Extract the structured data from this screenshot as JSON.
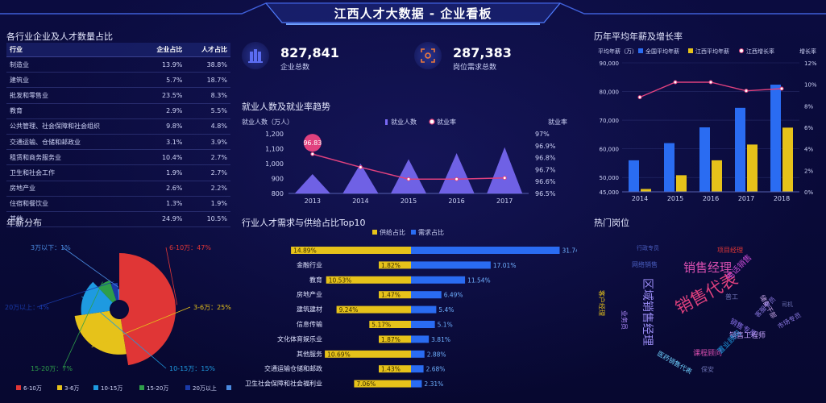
{
  "header": {
    "title": "江西人才大数据 - 企业看板"
  },
  "table_panel": {
    "title": "各行业企业及人才数量占比",
    "columns": [
      "行业",
      "企业占比",
      "人才占比"
    ],
    "rows": [
      [
        "制造业",
        "13.9%",
        "38.8%"
      ],
      [
        "建筑业",
        "5.7%",
        "18.7%"
      ],
      [
        "批发和零售业",
        "23.5%",
        "8.3%"
      ],
      [
        "教育",
        "2.9%",
        "5.5%"
      ],
      [
        "公共管理、社会保障和社会组织",
        "9.8%",
        "4.8%"
      ],
      [
        "交通运输、仓储和邮政业",
        "3.1%",
        "3.9%"
      ],
      [
        "租赁和商务服务业",
        "10.4%",
        "2.7%"
      ],
      [
        "卫生和社会工作",
        "1.9%",
        "2.7%"
      ],
      [
        "房地产业",
        "2.6%",
        "2.2%"
      ],
      [
        "住宿和餐饮业",
        "1.3%",
        "1.9%"
      ],
      [
        "其他",
        "24.9%",
        "10.5%"
      ]
    ]
  },
  "kpis": [
    {
      "value": "827,841",
      "label": "企业总数",
      "icon": "building-icon"
    },
    {
      "value": "287,383",
      "label": "岗位需求总数",
      "icon": "target-icon"
    }
  ],
  "colors": {
    "blue": "#2a6cf2",
    "yellow": "#e6c21a",
    "pink": "#e0417e",
    "purple": "#7a6af5",
    "red": "#e03636",
    "green": "#2e9e4a",
    "cyan": "#1e9ae0",
    "navy": "#1a3aa8"
  },
  "chart_data": [
    {
      "id": "employment",
      "type": "bar",
      "title": "就业人数及就业率趋势",
      "ylabel": "就业人数（万人）",
      "y2label": "就业率",
      "categories": [
        "2013",
        "2014",
        "2015",
        "2016",
        "2017"
      ],
      "series": [
        {
          "name": "就业人数",
          "values": [
            930,
            1000,
            1030,
            1070,
            1110
          ]
        },
        {
          "name": "就业率",
          "values": [
            96.83,
            96.72,
            96.62,
            96.62,
            96.63
          ]
        }
      ],
      "ylim": [
        800,
        1200
      ],
      "yticks": [
        "800",
        "900",
        "1,000",
        "1,100",
        "1,200"
      ],
      "y2lim": [
        96.5,
        97.0
      ],
      "y2ticks": [
        "96.5%",
        "96.6%",
        "96.7%",
        "96.8%",
        "96.9%",
        "97%"
      ],
      "annotation": "96.83"
    },
    {
      "id": "salary",
      "type": "bar",
      "title": "历年平均年薪及增长率",
      "ylabel": "平均年薪（万）",
      "y2label": "增长率",
      "categories": [
        "2014",
        "2015",
        "2016",
        "2017",
        "2018"
      ],
      "series": [
        {
          "name": "全国平均年薪",
          "values": [
            56000,
            62000,
            67500,
            74300,
            82400
          ]
        },
        {
          "name": "江西平均年薪",
          "values": [
            46000,
            50800,
            56000,
            61500,
            67400
          ]
        },
        {
          "name": "江西增长率",
          "values": [
            8.8,
            10.2,
            10.2,
            9.4,
            9.6
          ]
        }
      ],
      "ylim": [
        45000,
        90000
      ],
      "yticks": [
        "45,000",
        "50,000",
        "60,000",
        "70,000",
        "80,000",
        "90,000"
      ],
      "y2lim": [
        0,
        12
      ],
      "y2ticks": [
        "0%",
        "2%",
        "4%",
        "6%",
        "8%",
        "10%",
        "12%"
      ]
    },
    {
      "id": "salary_dist",
      "type": "pie",
      "title": "年薪分布",
      "labels": [
        "6-10万",
        "3-6万",
        "10-15万",
        "15-20万",
        "20万以上",
        "3万以下"
      ],
      "values": [
        47,
        25,
        15,
        7,
        4,
        1
      ],
      "slice_labels": [
        "6-10万：47%",
        "3-6万：25%",
        "10-15万：15%",
        "15-20万：7%",
        "20万以上：4%",
        "3万以下：1%"
      ]
    },
    {
      "id": "supply_demand",
      "type": "bar",
      "title": "行业人才需求与供给占比Top10",
      "legend": [
        "供给占比",
        "需求占比"
      ],
      "categories": [
        "制造业",
        "金融行业",
        "教育",
        "房地产业",
        "建筑建材",
        "信息传输",
        "文化体育娱乐业",
        "其他服务",
        "交通运输仓储和邮政",
        "卫生社会保障和社会福利业"
      ],
      "supply": [
        14.89,
        1.82,
        10.53,
        1.47,
        9.24,
        5.17,
        1.87,
        10.69,
        1.43,
        7.06
      ],
      "supply_labels": [
        "14.89%",
        "1.82%",
        "10.53%",
        "1.47%",
        "9.24%",
        "5.17%",
        "1.87%",
        "10.69%",
        "1.43%",
        "7.06%"
      ],
      "demand": [
        31.74,
        17.01,
        11.54,
        6.49,
        5.4,
        5.1,
        3.81,
        2.88,
        2.68,
        2.31
      ],
      "demand_labels": [
        "31.74%",
        "17.01%",
        "11.54%",
        "6.49%",
        "5.4%",
        "5.1%",
        "3.81%",
        "2.88%",
        "2.68%",
        "2.31%"
      ]
    }
  ],
  "hot_jobs": {
    "title": "热门岗位",
    "words": [
      {
        "text": "销售代表",
        "color": "#e0417e"
      },
      {
        "text": "销售经理",
        "color": "#d94fb0"
      },
      {
        "text": "区域销售经理",
        "color": "#9a8cf5"
      },
      {
        "text": "电话销售",
        "color": "#c34ad1"
      },
      {
        "text": "销售专员",
        "color": "#8870e8"
      },
      {
        "text": "销售工程师",
        "color": "#c8a6ff"
      },
      {
        "text": "业务员",
        "color": "#b18cff"
      },
      {
        "text": "客户经理",
        "color": "#e6c21a"
      },
      {
        "text": "项目经理",
        "color": "#e03636"
      },
      {
        "text": "普工",
        "color": "#6a6fb0"
      },
      {
        "text": "储备干部",
        "color": "#c9a7e8"
      },
      {
        "text": "客服专员",
        "color": "#8a78e0"
      },
      {
        "text": "课程顾问",
        "color": "#d94fb0"
      },
      {
        "text": "保安",
        "color": "#6a6fb0"
      },
      {
        "text": "网络销售",
        "color": "#4a5ec0"
      },
      {
        "text": "医药销售代表",
        "color": "#6fd0ff"
      },
      {
        "text": "置业顾问",
        "color": "#1e9ae0"
      },
      {
        "text": "市场专员",
        "color": "#8a78e0"
      },
      {
        "text": "司机",
        "color": "#6a6fb0"
      },
      {
        "text": "行政专员",
        "color": "#4a5ec0"
      }
    ]
  }
}
